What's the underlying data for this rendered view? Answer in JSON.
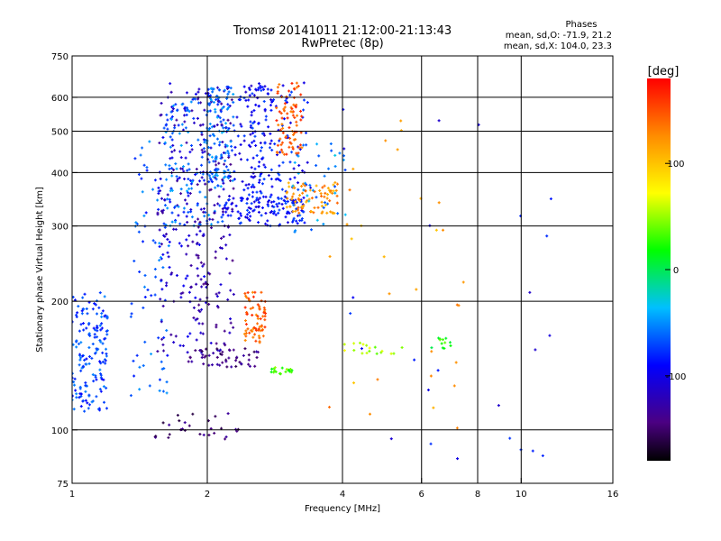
{
  "chart_data": {
    "type": "scatter",
    "title": "Tromsø 20141011 21:12:00-21:13:43",
    "subtitle": "RwPretec (8p)",
    "stats": {
      "heading": "Phases",
      "line1": "mean, sd,O: -71.9, 21.2",
      "line2": "mean, sd,X: 104.0, 23.3"
    },
    "xlabel": "Frequency [MHz]",
    "ylabel": "Stationary phase Virtual Height [km]",
    "xscale": "log",
    "yscale": "log",
    "xlim": [
      1,
      16
    ],
    "ylim": [
      75,
      750
    ],
    "xticks": [
      1,
      2,
      4,
      6,
      8,
      10,
      16
    ],
    "yticks": [
      75,
      100,
      200,
      300,
      400,
      500,
      600,
      750
    ],
    "grid": true,
    "colorbar": {
      "label": "[deg]",
      "range": [
        -180,
        180
      ],
      "ticks": [
        100,
        0,
        -100
      ],
      "colormap": [
        "#000000",
        "#4b0082",
        "#0000ff",
        "#00bfff",
        "#00ff00",
        "#ffff00",
        "#ff8c00",
        "#ff0000"
      ]
    },
    "clusters": [
      {
        "x": [
          1.0,
          1.2
        ],
        "y": [
          110,
          210
        ],
        "phase": -60,
        "count": 160
      },
      {
        "x": [
          1.35,
          1.65
        ],
        "y": [
          120,
          480
        ],
        "phase": -55,
        "count": 80
      },
      {
        "x": [
          1.55,
          2.0
        ],
        "y": [
          150,
          650
        ],
        "phase": -100,
        "count": 170
      },
      {
        "x": [
          1.6,
          2.2
        ],
        "y": [
          300,
          600
        ],
        "phase": -50,
        "count": 150
      },
      {
        "x": [
          1.9,
          2.3
        ],
        "y": [
          150,
          640
        ],
        "phase": -110,
        "count": 130
      },
      {
        "x": [
          2.0,
          2.3
        ],
        "y": [
          380,
          640
        ],
        "phase": -50,
        "count": 100
      },
      {
        "x": [
          2.1,
          3.3
        ],
        "y": [
          300,
          350
        ],
        "phase": -75,
        "count": 110
      },
      {
        "x": [
          2.3,
          2.8
        ],
        "y": [
          330,
          650
        ],
        "phase": -80,
        "count": 100
      },
      {
        "x": [
          2.5,
          3.4
        ],
        "y": [
          320,
          650
        ],
        "phase": -75,
        "count": 110
      },
      {
        "x": [
          2.4,
          2.7
        ],
        "y": [
          160,
          210
        ],
        "phase": 145,
        "count": 70
      },
      {
        "x": [
          1.8,
          2.6
        ],
        "y": [
          140,
          155
        ],
        "phase": -130,
        "count": 50
      },
      {
        "x": [
          1.5,
          2.4
        ],
        "y": [
          95,
          110
        ],
        "phase": -135,
        "count": 30
      },
      {
        "x": [
          2.85,
          3.25
        ],
        "y": [
          440,
          650
        ],
        "phase": 150,
        "count": 80
      },
      {
        "x": [
          3.0,
          3.9
        ],
        "y": [
          320,
          380
        ],
        "phase": 125,
        "count": 80
      },
      {
        "x": [
          3.1,
          4.2
        ],
        "y": [
          290,
          480
        ],
        "phase": -40,
        "count": 40
      },
      {
        "x": [
          2.75,
          3.1
        ],
        "y": [
          135,
          140
        ],
        "phase": 40,
        "count": 20
      },
      {
        "x": [
          4.0,
          5.5
        ],
        "y": [
          150,
          160
        ],
        "phase": 60,
        "count": 18
      },
      {
        "x": [
          6.3,
          7.0
        ],
        "y": [
          155,
          165
        ],
        "phase": 25,
        "count": 12
      },
      {
        "x": [
          3.5,
          7.5
        ],
        "y": [
          100,
          600
        ],
        "phase": 120,
        "count": 30
      },
      {
        "x": [
          4.0,
          12.5
        ],
        "y": [
          80,
          620
        ],
        "phase": -80,
        "count": 25
      }
    ]
  }
}
